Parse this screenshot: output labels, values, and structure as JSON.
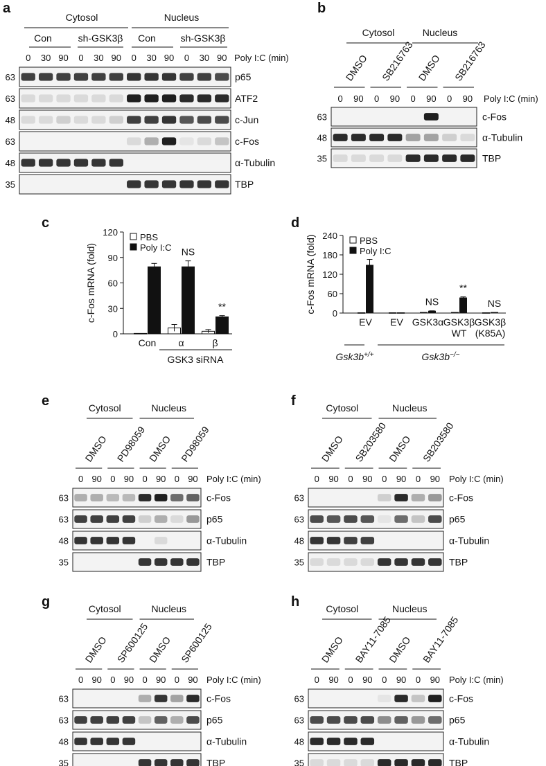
{
  "figure": {
    "panel_labels": [
      "a",
      "b",
      "c",
      "d",
      "e",
      "f",
      "g",
      "h"
    ],
    "poly_ic_label": "Poly I:C (min)",
    "times": [
      "0",
      "90"
    ],
    "band_intensity_note": "band darkness 0-1"
  },
  "panel_a": {
    "groups": [
      "Cytosol",
      "Nucleus"
    ],
    "subgroups": [
      "Con",
      "sh-GSK3β",
      "Con",
      "sh-GSK3β"
    ],
    "times": [
      "0",
      "30",
      "90",
      "0",
      "30",
      "90",
      "0",
      "30",
      "90",
      "0",
      "30",
      "90"
    ],
    "poly_label": "Poly I:C (min)",
    "blots": [
      {
        "name": "p65",
        "mw": "63",
        "bands": [
          0.8,
          0.8,
          0.8,
          0.8,
          0.8,
          0.8,
          0.85,
          0.85,
          0.85,
          0.8,
          0.8,
          0.75
        ]
      },
      {
        "name": "ATF2",
        "mw": "63",
        "bands": [
          0.1,
          0.1,
          0.1,
          0.1,
          0.1,
          0.1,
          0.95,
          0.95,
          0.95,
          0.9,
          0.9,
          0.9
        ]
      },
      {
        "name": "c-Jun",
        "mw": "48",
        "bands": [
          0.1,
          0.1,
          0.15,
          0.1,
          0.1,
          0.15,
          0.8,
          0.8,
          0.85,
          0.7,
          0.75,
          0.75
        ]
      },
      {
        "name": "c-Fos",
        "mw": "63",
        "bands": [
          0,
          0,
          0,
          0,
          0,
          0,
          0.1,
          0.3,
          0.95,
          0.05,
          0.1,
          0.2
        ]
      },
      {
        "name": "α-Tubulin",
        "mw": "48",
        "bands": [
          0.85,
          0.85,
          0.85,
          0.85,
          0.85,
          0.85,
          0,
          0,
          0,
          0,
          0,
          0
        ]
      },
      {
        "name": "TBP",
        "mw": "35",
        "bands": [
          0,
          0,
          0,
          0,
          0,
          0,
          0.85,
          0.85,
          0.85,
          0.85,
          0.85,
          0.85
        ]
      }
    ]
  },
  "panel_b": {
    "groups": [
      "Cytosol",
      "Nucleus"
    ],
    "treatments": [
      "DMSO",
      "SB216763",
      "DMSO",
      "SB216763"
    ],
    "blots": [
      {
        "name": "c-Fos",
        "mw": "63",
        "bands": [
          0,
          0,
          0,
          0,
          0,
          0.95,
          0,
          0
        ]
      },
      {
        "name": "α-Tubulin",
        "mw": "48",
        "bands": [
          0.9,
          0.9,
          0.9,
          0.9,
          0.35,
          0.35,
          0.15,
          0.1
        ]
      },
      {
        "name": "TBP",
        "mw": "35",
        "bands": [
          0.1,
          0.1,
          0.1,
          0.1,
          0.9,
          0.9,
          0.9,
          0.9
        ]
      }
    ]
  },
  "panel_e": {
    "groups": [
      "Cytosol",
      "Nucleus"
    ],
    "treatments": [
      "DMSO",
      "PD98059",
      "DMSO",
      "PD98059"
    ],
    "blots": [
      {
        "name": "c-Fos",
        "mw": "63",
        "bands": [
          0.3,
          0.3,
          0.25,
          0.25,
          0.9,
          0.95,
          0.6,
          0.65
        ]
      },
      {
        "name": "p65",
        "mw": "63",
        "bands": [
          0.8,
          0.8,
          0.8,
          0.8,
          0.15,
          0.3,
          0.1,
          0.4
        ]
      },
      {
        "name": "α-Tubulin",
        "mw": "48",
        "bands": [
          0.85,
          0.85,
          0.85,
          0.85,
          0,
          0.1,
          0,
          0
        ]
      },
      {
        "name": "TBP",
        "mw": "35",
        "bands": [
          0,
          0,
          0,
          0,
          0.85,
          0.85,
          0.85,
          0.85
        ]
      }
    ]
  },
  "panel_f": {
    "groups": [
      "Cytosol",
      "Nucleus"
    ],
    "treatments": [
      "DMSO",
      "SB203580",
      "DMSO",
      "SB203580"
    ],
    "blots": [
      {
        "name": "c-Fos",
        "mw": "63",
        "bands": [
          0,
          0,
          0,
          0,
          0.15,
          0.9,
          0.3,
          0.4
        ]
      },
      {
        "name": "p65",
        "mw": "63",
        "bands": [
          0.75,
          0.7,
          0.75,
          0.7,
          0.05,
          0.6,
          0.2,
          0.75
        ]
      },
      {
        "name": "α-Tubulin",
        "mw": "48",
        "bands": [
          0.85,
          0.85,
          0.8,
          0.8,
          0,
          0,
          0,
          0
        ]
      },
      {
        "name": "TBP",
        "mw": "35",
        "bands": [
          0.1,
          0.1,
          0.1,
          0.1,
          0.85,
          0.85,
          0.85,
          0.85
        ]
      }
    ]
  },
  "panel_g": {
    "groups": [
      "Cytosol",
      "Nucleus"
    ],
    "treatments": [
      "DMSO",
      "SP600125",
      "DMSO",
      "SP600125"
    ],
    "blots": [
      {
        "name": "c-Fos",
        "mw": "63",
        "bands": [
          0,
          0,
          0,
          0,
          0.3,
          0.85,
          0.35,
          0.9
        ]
      },
      {
        "name": "p65",
        "mw": "63",
        "bands": [
          0.8,
          0.8,
          0.8,
          0.8,
          0.2,
          0.65,
          0.3,
          0.75
        ]
      },
      {
        "name": "α-Tubulin",
        "mw": "48",
        "bands": [
          0.85,
          0.85,
          0.85,
          0.85,
          0,
          0,
          0,
          0
        ]
      },
      {
        "name": "TBP",
        "mw": "35",
        "bands": [
          0,
          0,
          0,
          0,
          0.85,
          0.85,
          0.85,
          0.85
        ]
      }
    ]
  },
  "panel_h": {
    "groups": [
      "Cytosol",
      "Nucleus"
    ],
    "treatments": [
      "DMSO",
      "BAY11-7085",
      "DMSO",
      "BAY11-7085"
    ],
    "blots": [
      {
        "name": "c-Fos",
        "mw": "63",
        "bands": [
          0,
          0,
          0,
          0,
          0.05,
          0.9,
          0.2,
          0.95
        ]
      },
      {
        "name": "p65",
        "mw": "63",
        "bands": [
          0.75,
          0.75,
          0.75,
          0.75,
          0.45,
          0.65,
          0.4,
          0.6
        ]
      },
      {
        "name": "α-Tubulin",
        "mw": "48",
        "bands": [
          0.9,
          0.9,
          0.9,
          0.9,
          0,
          0,
          0,
          0
        ]
      },
      {
        "name": "TBP",
        "mw": "35",
        "bands": [
          0.1,
          0.1,
          0.1,
          0.1,
          0.9,
          0.9,
          0.9,
          0.9
        ]
      }
    ]
  },
  "chart_data": [
    {
      "type": "bar",
      "panel": "c",
      "ylabel": "c-Fos mRNA (fold)",
      "ylim": [
        0,
        120
      ],
      "yticks": [
        0,
        30,
        60,
        90,
        120
      ],
      "categories": [
        "Con",
        "α",
        "β"
      ],
      "group_label": "GSK3 siRNA",
      "series": [
        {
          "name": "PBS",
          "values": [
            0.5,
            7,
            3
          ],
          "errors": [
            0,
            4,
            2
          ]
        },
        {
          "name": "Poly I:C",
          "values": [
            79,
            79,
            20
          ],
          "errors": [
            4,
            7,
            1.5
          ]
        }
      ],
      "annotations": [
        {
          "category": "α",
          "text": "NS"
        },
        {
          "category": "β",
          "text": "**"
        }
      ],
      "legend": "top-left"
    },
    {
      "type": "bar",
      "panel": "d",
      "ylabel": "c-Fos mRNA (fold)",
      "ylim": [
        0,
        240
      ],
      "yticks": [
        0,
        60,
        120,
        180,
        240
      ],
      "categories": [
        "EV",
        "EV",
        "GSK3α",
        "GSK3β WT",
        "GSK3β (K85A)"
      ],
      "genotype_groups": [
        {
          "label": "Gsk3b",
          "sup": "+/+",
          "count": 1
        },
        {
          "label": "Gsk3b",
          "sup": "−/−",
          "count": 4
        }
      ],
      "series": [
        {
          "name": "PBS",
          "values": [
            1,
            1,
            2,
            2,
            1
          ],
          "errors": [
            0,
            0,
            0,
            0,
            0
          ]
        },
        {
          "name": "Poly I:C",
          "values": [
            148,
            1,
            6,
            47,
            2
          ],
          "errors": [
            18,
            0,
            1,
            3,
            0
          ]
        }
      ],
      "annotations": [
        {
          "category_index": 2,
          "text": "NS"
        },
        {
          "category_index": 3,
          "text": "**"
        },
        {
          "category_index": 4,
          "text": "NS"
        }
      ],
      "legend": "top-left"
    }
  ]
}
